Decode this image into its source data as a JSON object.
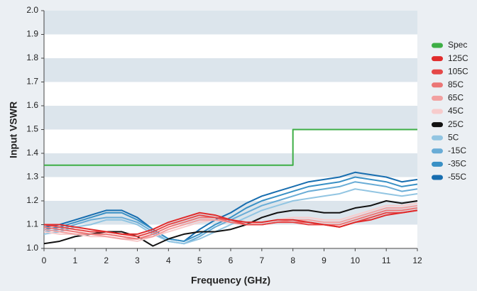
{
  "chart_data": {
    "type": "line",
    "xlabel": "Frequency (GHz)",
    "ylabel": "Input VSWR",
    "xlim": [
      0,
      12
    ],
    "xticks": [
      0,
      1,
      2,
      3,
      4,
      5,
      6,
      7,
      8,
      9,
      10,
      11,
      12
    ],
    "ylim": [
      1.0,
      2.0
    ],
    "yticks": [
      {
        "value": 1.0,
        "label": "1.0"
      },
      1.1,
      1.2,
      1.3,
      1.4,
      1.5,
      1.6,
      1.7,
      1.8,
      1.9,
      {
        "value": 2.0,
        "label": "2.0"
      }
    ],
    "band_color": "#dce5ec",
    "x": [
      0,
      0.5,
      1,
      1.5,
      2,
      2.5,
      3,
      3.5,
      4,
      4.5,
      5,
      5.5,
      6,
      6.5,
      7,
      7.5,
      8,
      8.5,
      9,
      9.5,
      10,
      10.5,
      11,
      11.5,
      12
    ],
    "series": [
      {
        "name": "Spec",
        "color": "#3dae45",
        "x": [
          0,
          8,
          8,
          12
        ],
        "values": [
          1.35,
          1.35,
          1.5,
          1.5
        ]
      },
      {
        "name": "125C",
        "color": "#e02b2b",
        "values": [
          1.1,
          1.1,
          1.09,
          1.08,
          1.07,
          1.06,
          1.06,
          1.08,
          1.11,
          1.13,
          1.15,
          1.14,
          1.12,
          1.11,
          1.11,
          1.12,
          1.12,
          1.11,
          1.1,
          1.09,
          1.11,
          1.12,
          1.14,
          1.15,
          1.16
        ]
      },
      {
        "name": "105C",
        "color": "#e54848",
        "values": [
          1.1,
          1.09,
          1.08,
          1.07,
          1.07,
          1.06,
          1.05,
          1.07,
          1.1,
          1.12,
          1.14,
          1.13,
          1.12,
          1.1,
          1.1,
          1.11,
          1.11,
          1.1,
          1.1,
          1.09,
          1.11,
          1.13,
          1.15,
          1.15,
          1.16
        ]
      },
      {
        "name": "85C",
        "color": "#eb7676",
        "values": [
          1.09,
          1.08,
          1.07,
          1.06,
          1.06,
          1.05,
          1.04,
          1.06,
          1.09,
          1.11,
          1.13,
          1.13,
          1.11,
          1.1,
          1.1,
          1.11,
          1.11,
          1.11,
          1.1,
          1.1,
          1.12,
          1.14,
          1.16,
          1.16,
          1.17
        ]
      },
      {
        "name": "65C",
        "color": "#f2a0a0",
        "values": [
          1.08,
          1.07,
          1.06,
          1.06,
          1.05,
          1.04,
          1.04,
          1.05,
          1.08,
          1.1,
          1.12,
          1.12,
          1.11,
          1.1,
          1.1,
          1.11,
          1.12,
          1.12,
          1.11,
          1.11,
          1.13,
          1.15,
          1.17,
          1.17,
          1.18
        ]
      },
      {
        "name": "45C",
        "color": "#f7cccc",
        "values": [
          1.07,
          1.06,
          1.06,
          1.05,
          1.05,
          1.04,
          1.03,
          1.05,
          1.07,
          1.09,
          1.11,
          1.12,
          1.11,
          1.1,
          1.11,
          1.12,
          1.13,
          1.13,
          1.12,
          1.12,
          1.14,
          1.16,
          1.18,
          1.18,
          1.19
        ]
      },
      {
        "name": "25C",
        "color": "#111111",
        "values": [
          1.02,
          1.03,
          1.05,
          1.06,
          1.07,
          1.07,
          1.05,
          1.01,
          1.04,
          1.06,
          1.07,
          1.07,
          1.08,
          1.1,
          1.13,
          1.15,
          1.16,
          1.16,
          1.15,
          1.15,
          1.17,
          1.18,
          1.2,
          1.19,
          1.2
        ]
      },
      {
        "name": "5C",
        "color": "#92c5e2",
        "values": [
          1.06,
          1.07,
          1.09,
          1.1,
          1.12,
          1.12,
          1.1,
          1.06,
          1.03,
          1.02,
          1.04,
          1.07,
          1.1,
          1.13,
          1.16,
          1.18,
          1.2,
          1.21,
          1.22,
          1.23,
          1.25,
          1.24,
          1.23,
          1.22,
          1.23
        ]
      },
      {
        "name": "-15C",
        "color": "#69acd6",
        "values": [
          1.07,
          1.08,
          1.1,
          1.12,
          1.13,
          1.13,
          1.11,
          1.07,
          1.03,
          1.02,
          1.05,
          1.09,
          1.12,
          1.15,
          1.18,
          1.2,
          1.22,
          1.24,
          1.25,
          1.26,
          1.28,
          1.27,
          1.26,
          1.24,
          1.25
        ]
      },
      {
        "name": "-35C",
        "color": "#3990c5",
        "values": [
          1.08,
          1.09,
          1.11,
          1.13,
          1.15,
          1.15,
          1.12,
          1.08,
          1.04,
          1.03,
          1.06,
          1.1,
          1.13,
          1.17,
          1.2,
          1.22,
          1.24,
          1.26,
          1.27,
          1.28,
          1.3,
          1.29,
          1.28,
          1.26,
          1.27
        ]
      },
      {
        "name": "-55C",
        "color": "#176daf",
        "values": [
          1.09,
          1.1,
          1.12,
          1.14,
          1.16,
          1.16,
          1.13,
          1.08,
          1.04,
          1.03,
          1.08,
          1.12,
          1.15,
          1.19,
          1.22,
          1.24,
          1.26,
          1.28,
          1.29,
          1.3,
          1.32,
          1.31,
          1.3,
          1.28,
          1.29
        ]
      }
    ]
  }
}
